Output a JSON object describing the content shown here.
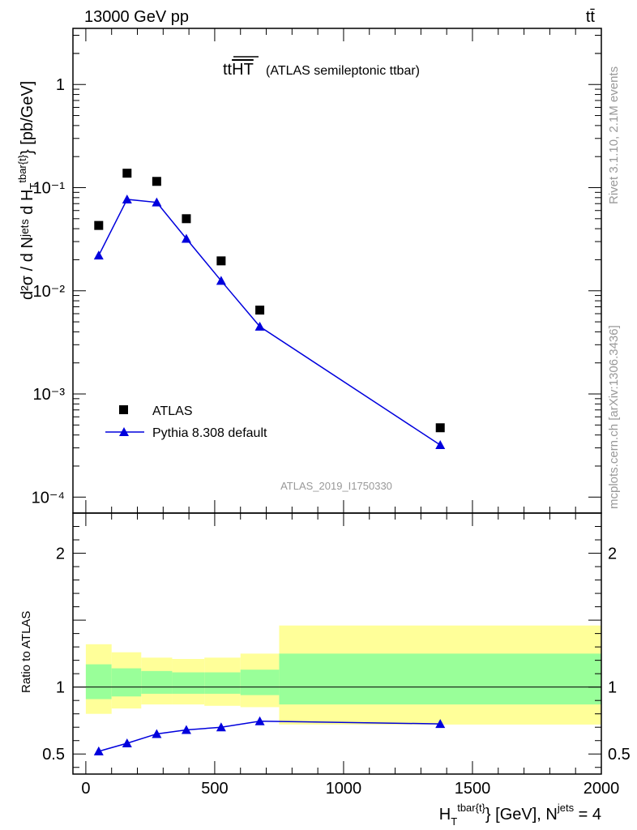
{
  "header": {
    "left": "13000 GeV pp",
    "right": "tt̄"
  },
  "title": {
    "main": "tt",
    "main_overline": "HT",
    "sub": "(ATLAS semileptonic ttbar)"
  },
  "watermark": "ATLAS_2019_I1750330",
  "side_text": {
    "rivet": "Rivet 3.1.10,  2.1M events",
    "mcplots": "mcplots.cern.ch [arXiv:1306.3436]"
  },
  "legend": {
    "data_label": "ATLAS",
    "mc_label": "Pythia 8.308 default",
    "position": "lower-left"
  },
  "axes": {
    "ylabel_main": "d²σ / d Nʲᵉᵗˢ d H_T^{tbar{t}} [pb/GeV]",
    "ylabel_ratio": "Ratio to ATLAS",
    "xlabel": "H_T^{tbar{t}} [GeV], Nʲᵉᵗˢ = 4"
  },
  "colors": {
    "data": "#000000",
    "mc": "#0000dd",
    "band_inner": "#99ff99",
    "band_outer": "#ffff99"
  },
  "chart_data": {
    "type": "scatter",
    "x_range": [
      -50,
      2000
    ],
    "y_scale": "log",
    "y_range": [
      7e-05,
      3.5
    ],
    "x_ticks": [
      0,
      500,
      1000,
      1500,
      2000
    ],
    "y_ticks": [
      "1",
      "10⁻¹",
      "10⁻²",
      "10⁻³",
      "10⁻⁴"
    ],
    "series": [
      {
        "name": "ATLAS",
        "x": [
          50,
          160,
          275,
          390,
          525,
          675,
          1375
        ],
        "y": [
          0.043,
          0.138,
          0.115,
          0.05,
          0.0195,
          0.0065,
          0.00047
        ]
      },
      {
        "name": "Pythia 8.308 default",
        "x": [
          50,
          160,
          275,
          390,
          525,
          675,
          1375
        ],
        "y": [
          0.022,
          0.077,
          0.072,
          0.032,
          0.0125,
          0.0045,
          0.00032
        ]
      }
    ],
    "ratio": {
      "y_range": [
        0.35,
        2.3
      ],
      "y_ticks": [
        0.5,
        1,
        2
      ],
      "mc_x": [
        50,
        160,
        275,
        390,
        525,
        675,
        1375
      ],
      "mc_y": [
        0.52,
        0.58,
        0.65,
        0.68,
        0.7,
        0.745,
        0.725
      ],
      "bands": [
        {
          "x0": 0,
          "x1": 100,
          "inner": [
            0.91,
            1.17
          ],
          "outer": [
            0.8,
            1.32
          ]
        },
        {
          "x0": 100,
          "x1": 215,
          "inner": [
            0.93,
            1.14
          ],
          "outer": [
            0.84,
            1.26
          ]
        },
        {
          "x0": 215,
          "x1": 335,
          "inner": [
            0.95,
            1.12
          ],
          "outer": [
            0.87,
            1.22
          ]
        },
        {
          "x0": 335,
          "x1": 460,
          "inner": [
            0.95,
            1.11
          ],
          "outer": [
            0.87,
            1.21
          ]
        },
        {
          "x0": 460,
          "x1": 600,
          "inner": [
            0.95,
            1.11
          ],
          "outer": [
            0.86,
            1.22
          ]
        },
        {
          "x0": 600,
          "x1": 750,
          "inner": [
            0.94,
            1.13
          ],
          "outer": [
            0.85,
            1.25
          ]
        },
        {
          "x0": 750,
          "x1": 2000,
          "inner": [
            0.87,
            1.25
          ],
          "outer": [
            0.72,
            1.46
          ]
        }
      ]
    }
  }
}
